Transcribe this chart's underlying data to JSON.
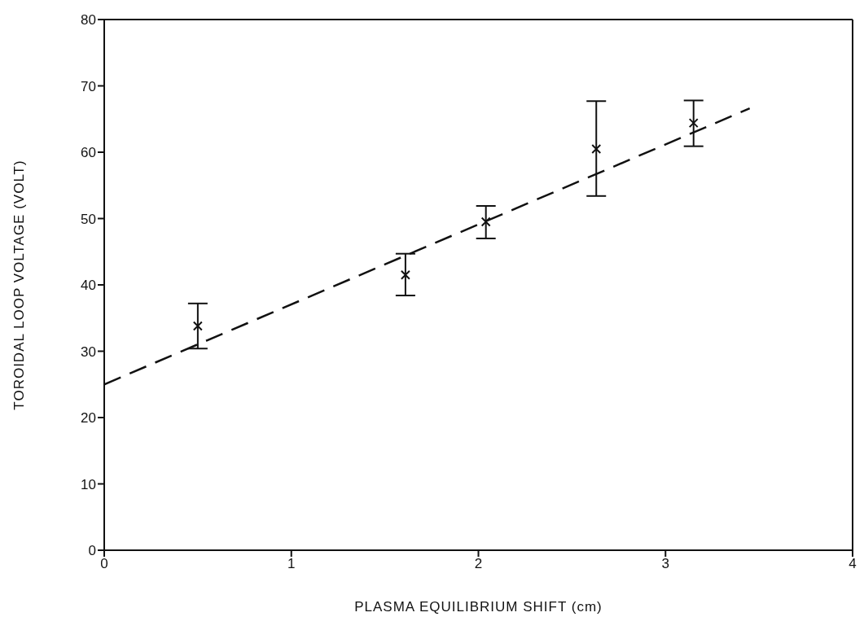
{
  "chart_data": {
    "type": "scatter",
    "xlabel": "PLASMA EQUILIBRIUM SHIFT (cm)",
    "ylabel": "TOROIDAL LOOP VOLTAGE (VOLT)",
    "xlim": [
      0,
      4
    ],
    "xticks": [
      0,
      1,
      2,
      3,
      4
    ],
    "ylim": [
      0,
      80
    ],
    "yticks": [
      0,
      10,
      20,
      30,
      40,
      50,
      60,
      70,
      80
    ],
    "marker": "cross",
    "series": [
      {
        "color": "#111111",
        "x": [
          0.5,
          1.61,
          2.04,
          2.63,
          3.15
        ],
        "values": [
          33.8,
          41.5,
          49.5,
          60.5,
          64.4
        ],
        "errors": [
          [
            30.4,
            37.2
          ],
          [
            38.4,
            44.7
          ],
          [
            47.0,
            51.9
          ],
          [
            53.4,
            67.7
          ],
          [
            60.9,
            67.8
          ]
        ]
      },
      {
        "type": "line",
        "color": "#111111",
        "line_style": "dashed",
        "marker": "none",
        "x": [
          0,
          3.45
        ],
        "values": [
          25.0,
          66.6
        ]
      }
    ]
  }
}
